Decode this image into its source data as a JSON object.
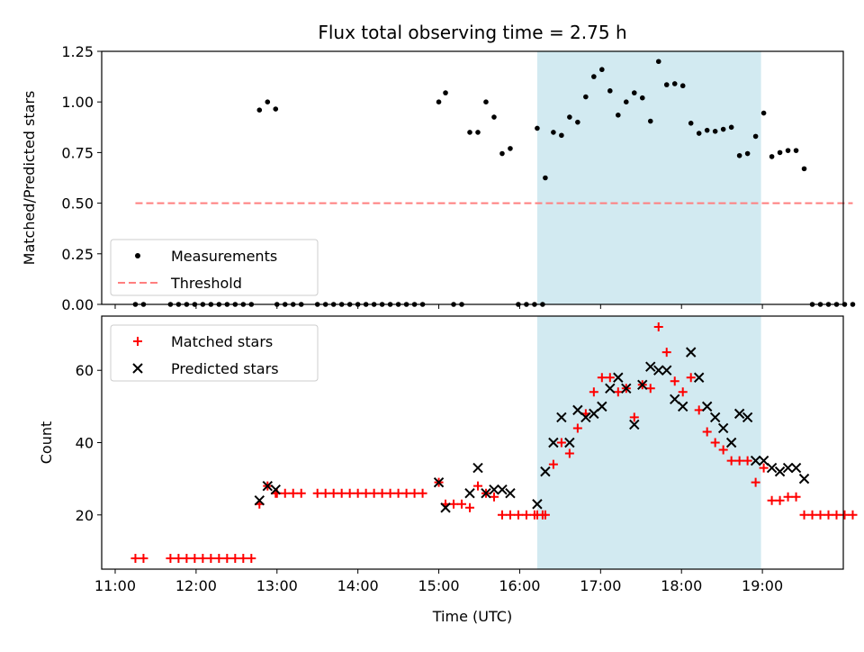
{
  "title": "Flux total observing time = 2.75 h",
  "chart_data": [
    {
      "type": "scatter",
      "panel": "top",
      "xlabel": "",
      "ylabel": "Matched/Predicted stars",
      "xlim": [
        "10:50",
        "20:00"
      ],
      "ylim": [
        0,
        1.25
      ],
      "yticks": [
        "0.00",
        "0.25",
        "0.50",
        "0.75",
        "1.00",
        "1.25"
      ],
      "highlight_span": [
        "16:13",
        "18:59"
      ],
      "highlight_color": "#add8e6",
      "legend": {
        "location": "lower-left",
        "entries": [
          "Measurements",
          "Threshold"
        ]
      },
      "series": [
        {
          "name": "Measurements",
          "color": "#000000",
          "marker": "dot",
          "points": [
            [
              "11:15",
              0
            ],
            [
              "11:21",
              0
            ],
            [
              "11:41",
              0
            ],
            [
              "11:47",
              0
            ],
            [
              "11:53",
              0
            ],
            [
              "11:59",
              0
            ],
            [
              "12:05",
              0
            ],
            [
              "12:11",
              0
            ],
            [
              "12:17",
              0
            ],
            [
              "12:23",
              0
            ],
            [
              "12:29",
              0
            ],
            [
              "12:35",
              0
            ],
            [
              "12:41",
              0
            ],
            [
              "12:47",
              0.96
            ],
            [
              "12:53",
              1.0
            ],
            [
              "12:59",
              0.965
            ],
            [
              "13:00",
              0
            ],
            [
              "13:06",
              0
            ],
            [
              "13:12",
              0
            ],
            [
              "13:18",
              0
            ],
            [
              "13:30",
              0
            ],
            [
              "13:36",
              0
            ],
            [
              "13:42",
              0
            ],
            [
              "13:48",
              0
            ],
            [
              "13:54",
              0
            ],
            [
              "14:00",
              0
            ],
            [
              "14:06",
              0
            ],
            [
              "14:12",
              0
            ],
            [
              "14:18",
              0
            ],
            [
              "14:24",
              0
            ],
            [
              "14:30",
              0
            ],
            [
              "14:36",
              0
            ],
            [
              "14:42",
              0
            ],
            [
              "14:48",
              0
            ],
            [
              "15:00",
              1.0
            ],
            [
              "15:05",
              1.045
            ],
            [
              "15:11",
              0
            ],
            [
              "15:17",
              0
            ],
            [
              "15:23",
              0.85
            ],
            [
              "15:29",
              0.85
            ],
            [
              "15:35",
              1.0
            ],
            [
              "15:41",
              0.925
            ],
            [
              "15:47",
              0.745
            ],
            [
              "15:53",
              0.77
            ],
            [
              "15:59",
              0
            ],
            [
              "16:05",
              0
            ],
            [
              "16:11",
              0
            ],
            [
              "16:17",
              0
            ],
            [
              "16:13",
              0.87
            ],
            [
              "16:19",
              0.625
            ],
            [
              "16:25",
              0.85
            ],
            [
              "16:31",
              0.835
            ],
            [
              "16:37",
              0.925
            ],
            [
              "16:43",
              0.9
            ],
            [
              "16:49",
              1.025
            ],
            [
              "16:55",
              1.125
            ],
            [
              "17:01",
              1.16
            ],
            [
              "17:07",
              1.055
            ],
            [
              "17:13",
              0.935
            ],
            [
              "17:19",
              1.0
            ],
            [
              "17:25",
              1.045
            ],
            [
              "17:31",
              1.02
            ],
            [
              "17:37",
              0.905
            ],
            [
              "17:43",
              1.2
            ],
            [
              "17:49",
              1.085
            ],
            [
              "17:55",
              1.09
            ],
            [
              "18:01",
              1.08
            ],
            [
              "18:07",
              0.895
            ],
            [
              "18:13",
              0.845
            ],
            [
              "18:19",
              0.86
            ],
            [
              "18:25",
              0.855
            ],
            [
              "18:31",
              0.865
            ],
            [
              "18:37",
              0.875
            ],
            [
              "18:43",
              0.735
            ],
            [
              "18:49",
              0.745
            ],
            [
              "18:55",
              0.83
            ],
            [
              "19:01",
              0.945
            ],
            [
              "19:07",
              0.73
            ],
            [
              "19:13",
              0.75
            ],
            [
              "19:19",
              0.76
            ],
            [
              "19:25",
              0.76
            ],
            [
              "19:31",
              0.67
            ],
            [
              "19:37",
              0
            ],
            [
              "19:43",
              0
            ],
            [
              "19:49",
              0
            ],
            [
              "19:55",
              0
            ],
            [
              "20:01",
              0
            ],
            [
              "20:07",
              0
            ]
          ]
        },
        {
          "name": "Threshold",
          "color": "#ff7f7f",
          "style": "dashed",
          "points": [
            [
              "11:15",
              0.5
            ],
            [
              "20:07",
              0.5
            ]
          ]
        }
      ]
    },
    {
      "type": "scatter",
      "panel": "bottom",
      "xlabel": "Time (UTC)",
      "ylabel": "Count",
      "xlim": [
        "10:50",
        "20:00"
      ],
      "ylim": [
        5,
        75
      ],
      "yticks": [
        "20",
        "40",
        "60"
      ],
      "xticks": [
        "11:00",
        "12:00",
        "13:00",
        "14:00",
        "15:00",
        "16:00",
        "17:00",
        "18:00",
        "19:00"
      ],
      "highlight_span": [
        "16:13",
        "18:59"
      ],
      "highlight_color": "#add8e6",
      "legend": {
        "location": "top-left",
        "entries": [
          "Matched stars",
          "Predicted stars"
        ]
      },
      "series": [
        {
          "name": "Matched stars",
          "color": "#ff0000",
          "marker": "plus",
          "points": [
            [
              "11:15",
              8
            ],
            [
              "11:21",
              8
            ],
            [
              "11:41",
              8
            ],
            [
              "11:47",
              8
            ],
            [
              "11:53",
              8
            ],
            [
              "11:59",
              8
            ],
            [
              "12:05",
              8
            ],
            [
              "12:11",
              8
            ],
            [
              "12:17",
              8
            ],
            [
              "12:23",
              8
            ],
            [
              "12:29",
              8
            ],
            [
              "12:35",
              8
            ],
            [
              "12:41",
              8
            ],
            [
              "12:47",
              23
            ],
            [
              "12:53",
              28
            ],
            [
              "12:59",
              26
            ],
            [
              "13:00",
              26
            ],
            [
              "13:06",
              26
            ],
            [
              "13:12",
              26
            ],
            [
              "13:18",
              26
            ],
            [
              "13:30",
              26
            ],
            [
              "13:36",
              26
            ],
            [
              "13:42",
              26
            ],
            [
              "13:48",
              26
            ],
            [
              "13:54",
              26
            ],
            [
              "14:00",
              26
            ],
            [
              "14:06",
              26
            ],
            [
              "14:12",
              26
            ],
            [
              "14:18",
              26
            ],
            [
              "14:24",
              26
            ],
            [
              "14:30",
              26
            ],
            [
              "14:36",
              26
            ],
            [
              "14:42",
              26
            ],
            [
              "14:48",
              26
            ],
            [
              "15:00",
              29
            ],
            [
              "15:05",
              23
            ],
            [
              "15:11",
              23
            ],
            [
              "15:17",
              23
            ],
            [
              "15:23",
              22
            ],
            [
              "15:29",
              28
            ],
            [
              "15:35",
              26
            ],
            [
              "15:41",
              25
            ],
            [
              "15:47",
              20
            ],
            [
              "15:53",
              20
            ],
            [
              "15:59",
              20
            ],
            [
              "16:05",
              20
            ],
            [
              "16:11",
              20
            ],
            [
              "16:17",
              20
            ],
            [
              "16:13",
              20
            ],
            [
              "16:19",
              20
            ],
            [
              "16:25",
              34
            ],
            [
              "16:31",
              40
            ],
            [
              "16:37",
              37
            ],
            [
              "16:43",
              44
            ],
            [
              "16:49",
              48
            ],
            [
              "16:55",
              54
            ],
            [
              "17:01",
              58
            ],
            [
              "17:07",
              58
            ],
            [
              "17:13",
              54
            ],
            [
              "17:19",
              55
            ],
            [
              "17:25",
              47
            ],
            [
              "17:31",
              56
            ],
            [
              "17:37",
              55
            ],
            [
              "17:43",
              72
            ],
            [
              "17:49",
              65
            ],
            [
              "17:55",
              57
            ],
            [
              "18:01",
              54
            ],
            [
              "18:07",
              58
            ],
            [
              "18:13",
              49
            ],
            [
              "18:19",
              43
            ],
            [
              "18:25",
              40
            ],
            [
              "18:31",
              38
            ],
            [
              "18:37",
              35
            ],
            [
              "18:43",
              35
            ],
            [
              "18:49",
              35
            ],
            [
              "18:55",
              29
            ],
            [
              "19:01",
              33
            ],
            [
              "19:07",
              24
            ],
            [
              "19:13",
              24
            ],
            [
              "19:19",
              25
            ],
            [
              "19:25",
              25
            ],
            [
              "19:31",
              20
            ],
            [
              "19:37",
              20
            ],
            [
              "19:43",
              20
            ],
            [
              "19:49",
              20
            ],
            [
              "19:55",
              20
            ],
            [
              "20:01",
              20
            ],
            [
              "20:07",
              20
            ]
          ]
        },
        {
          "name": "Predicted stars",
          "color": "#000000",
          "marker": "x",
          "points": [
            [
              "12:47",
              24
            ],
            [
              "12:53",
              28
            ],
            [
              "12:59",
              27
            ],
            [
              "15:00",
              29
            ],
            [
              "15:05",
              22
            ],
            [
              "15:23",
              26
            ],
            [
              "15:29",
              33
            ],
            [
              "15:35",
              26
            ],
            [
              "15:41",
              27
            ],
            [
              "15:47",
              27
            ],
            [
              "15:53",
              26
            ],
            [
              "16:13",
              23
            ],
            [
              "16:19",
              32
            ],
            [
              "16:25",
              40
            ],
            [
              "16:31",
              47
            ],
            [
              "16:37",
              40
            ],
            [
              "16:43",
              49
            ],
            [
              "16:49",
              47
            ],
            [
              "16:55",
              48
            ],
            [
              "17:01",
              50
            ],
            [
              "17:07",
              55
            ],
            [
              "17:13",
              58
            ],
            [
              "17:19",
              55
            ],
            [
              "17:25",
              45
            ],
            [
              "17:31",
              56
            ],
            [
              "17:37",
              61
            ],
            [
              "17:43",
              60
            ],
            [
              "17:49",
              60
            ],
            [
              "17:55",
              52
            ],
            [
              "18:01",
              50
            ],
            [
              "18:07",
              65
            ],
            [
              "18:13",
              58
            ],
            [
              "18:19",
              50
            ],
            [
              "18:25",
              47
            ],
            [
              "18:31",
              44
            ],
            [
              "18:37",
              40
            ],
            [
              "18:43",
              48
            ],
            [
              "18:49",
              47
            ],
            [
              "18:55",
              35
            ],
            [
              "19:01",
              35
            ],
            [
              "19:07",
              33
            ],
            [
              "19:13",
              32
            ],
            [
              "19:19",
              33
            ],
            [
              "19:25",
              33
            ],
            [
              "19:31",
              30
            ]
          ]
        }
      ]
    }
  ]
}
